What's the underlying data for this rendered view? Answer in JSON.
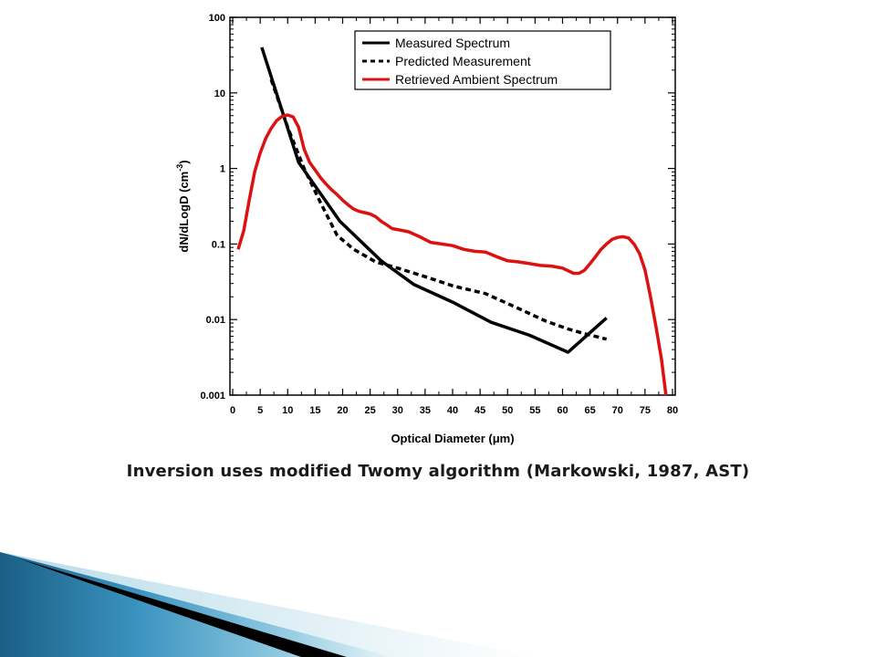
{
  "caption": "Inversion uses modified Twomy algorithm (Markowski, 1987, AST)",
  "chart_data": {
    "type": "line",
    "xlabel": "Optical Diameter (μm)",
    "ylabel_main": "dN/dLogD (cm",
    "ylabel_sup": "-3",
    "ylabel_close": ")",
    "xlim": [
      -0.5,
      80.5
    ],
    "ylim": [
      0.001,
      100
    ],
    "y_scale": "log",
    "x_ticks": [
      0,
      5,
      10,
      15,
      20,
      25,
      30,
      35,
      40,
      45,
      50,
      55,
      60,
      65,
      70,
      75,
      80
    ],
    "y_ticks": [
      {
        "value": 0.001,
        "label": "0.001"
      },
      {
        "value": 0.01,
        "label": "0.01"
      },
      {
        "value": 0.1,
        "label": "0.1"
      },
      {
        "value": 1,
        "label": "1"
      },
      {
        "value": 10,
        "label": "10"
      },
      {
        "value": 100,
        "label": "100"
      }
    ],
    "legend_position": "top-right",
    "series": [
      {
        "name": "Measured Spectrum",
        "color": "#000000",
        "style": "solid",
        "points": [
          [
            5.3,
            40
          ],
          [
            12,
            1.2
          ],
          [
            19.5,
            0.2
          ],
          [
            27,
            0.06
          ],
          [
            33,
            0.029
          ],
          [
            40,
            0.017
          ],
          [
            47,
            0.0092
          ],
          [
            54,
            0.0062
          ],
          [
            61,
            0.0037
          ],
          [
            68,
            0.0105
          ]
        ]
      },
      {
        "name": "Predicted Measurement",
        "color": "#000000",
        "style": "dashed",
        "points": [
          [
            7,
            15
          ],
          [
            10,
            3.5
          ],
          [
            13,
            1.0
          ],
          [
            16,
            0.35
          ],
          [
            19,
            0.13
          ],
          [
            22,
            0.085
          ],
          [
            26,
            0.058
          ],
          [
            30,
            0.048
          ],
          [
            35,
            0.037
          ],
          [
            40,
            0.028
          ],
          [
            46,
            0.022
          ],
          [
            52,
            0.014
          ],
          [
            57,
            0.0095
          ],
          [
            61,
            0.0075
          ],
          [
            64,
            0.0065
          ],
          [
            68,
            0.0055
          ]
        ]
      },
      {
        "name": "Retrieved Ambient Spectrum",
        "color": "#dd1111",
        "style": "solid",
        "points": [
          [
            1,
            0.085
          ],
          [
            2,
            0.15
          ],
          [
            3,
            0.38
          ],
          [
            4,
            0.9
          ],
          [
            5,
            1.6
          ],
          [
            6,
            2.5
          ],
          [
            7,
            3.4
          ],
          [
            8,
            4.3
          ],
          [
            9,
            4.9
          ],
          [
            10,
            5.1
          ],
          [
            11,
            4.8
          ],
          [
            12,
            3.5
          ],
          [
            13,
            1.8
          ],
          [
            14,
            1.2
          ],
          [
            15,
            0.95
          ],
          [
            16,
            0.75
          ],
          [
            17,
            0.62
          ],
          [
            18,
            0.52
          ],
          [
            19,
            0.45
          ],
          [
            20,
            0.38
          ],
          [
            21,
            0.33
          ],
          [
            22,
            0.29
          ],
          [
            23,
            0.27
          ],
          [
            24,
            0.26
          ],
          [
            25,
            0.25
          ],
          [
            26,
            0.23
          ],
          [
            27,
            0.2
          ],
          [
            28,
            0.18
          ],
          [
            29,
            0.16
          ],
          [
            30,
            0.155
          ],
          [
            32,
            0.145
          ],
          [
            34,
            0.125
          ],
          [
            36,
            0.105
          ],
          [
            38,
            0.1
          ],
          [
            40,
            0.095
          ],
          [
            42,
            0.085
          ],
          [
            44,
            0.08
          ],
          [
            46,
            0.078
          ],
          [
            48,
            0.068
          ],
          [
            50,
            0.06
          ],
          [
            52,
            0.058
          ],
          [
            54,
            0.055
          ],
          [
            56,
            0.052
          ],
          [
            58,
            0.051
          ],
          [
            60,
            0.048
          ],
          [
            62,
            0.041
          ],
          [
            63,
            0.041
          ],
          [
            64,
            0.045
          ],
          [
            65,
            0.055
          ],
          [
            66,
            0.068
          ],
          [
            67,
            0.085
          ],
          [
            68,
            0.1
          ],
          [
            69,
            0.115
          ],
          [
            70,
            0.122
          ],
          [
            71,
            0.125
          ],
          [
            72,
            0.12
          ],
          [
            73,
            0.1
          ],
          [
            74,
            0.075
          ],
          [
            75,
            0.045
          ],
          [
            76,
            0.02
          ],
          [
            77,
            0.008
          ],
          [
            78,
            0.003
          ],
          [
            78.8,
            0.001
          ]
        ]
      }
    ]
  }
}
